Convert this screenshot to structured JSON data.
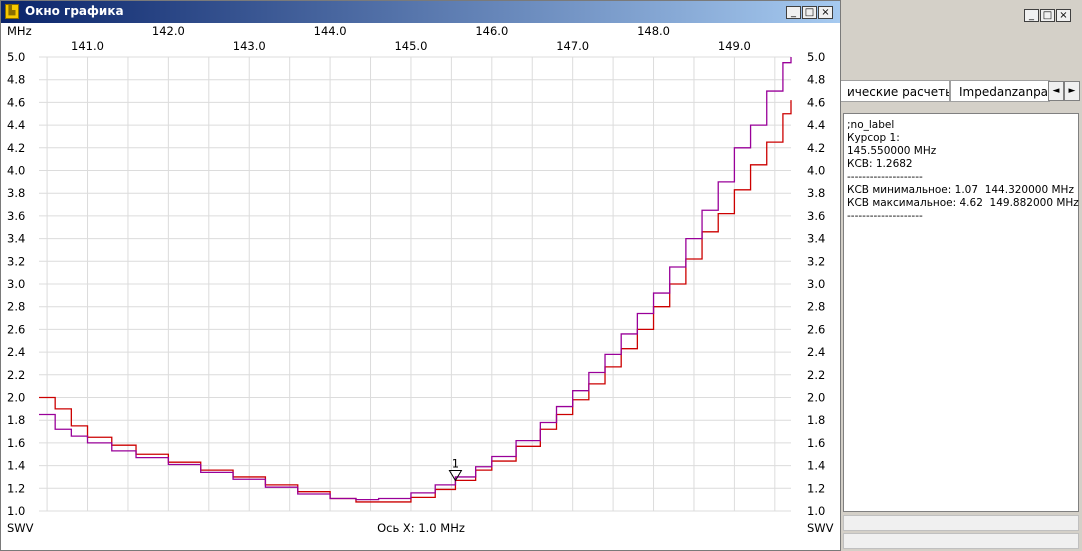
{
  "window": {
    "title": "Окно графика",
    "icon": "graph-window-icon",
    "buttons": [
      "_",
      "□",
      "×"
    ]
  },
  "background_window": {
    "buttons": [
      "_",
      "□",
      "×"
    ],
    "tabs": [
      "ические расчеты",
      "Impedanzanpas"
    ],
    "tab_arrows": [
      "◄",
      "►"
    ]
  },
  "info_panel": {
    "lines": [
      ";no_label",
      "",
      "Курсор 1:",
      "145.550000 MHz",
      "КСВ: 1.2682",
      "--------------------",
      "КСВ минимальное: 1.07  144.320000 MHz",
      "КСВ максимальное: 4.62  149.882000 MHz",
      "--------------------"
    ]
  },
  "chart_data": {
    "type": "line",
    "x_unit_label": "MHz",
    "x_axis_caption": "Ось X: 1.0 MHz",
    "y_label_left": "SWV",
    "y_label_right": "SWV",
    "xlim": [
      140.4,
      149.7
    ],
    "ylim": [
      1.0,
      5.0
    ],
    "x_ticks_top": [
      "142.0",
      "144.0",
      "146.0",
      "148.0"
    ],
    "x_ticks_bottom": [
      "141.0",
      "143.0",
      "145.0",
      "147.0",
      "149.0"
    ],
    "y_ticks": [
      "5.0",
      "4.8",
      "4.6",
      "4.4",
      "4.2",
      "4.0",
      "3.8",
      "3.6",
      "3.4",
      "3.2",
      "3.0",
      "2.8",
      "2.6",
      "2.4",
      "2.2",
      "2.0",
      "1.8",
      "1.6",
      "1.4",
      "1.2",
      "1.0"
    ],
    "grid": true,
    "cursor": {
      "label": "1",
      "x": 145.55,
      "y": 1.2682
    },
    "colors": {
      "series_red": "#cc0000",
      "series_purple": "#990099",
      "grid": "#dcdcdc"
    },
    "series": [
      {
        "color": "#cc0000",
        "x": [
          140.4,
          140.6,
          140.8,
          141.0,
          141.3,
          141.6,
          142.0,
          142.4,
          142.8,
          143.2,
          143.6,
          144.0,
          144.32,
          144.6,
          145.0,
          145.3,
          145.55,
          145.8,
          146.0,
          146.3,
          146.6,
          146.8,
          147.0,
          147.2,
          147.4,
          147.6,
          147.8,
          148.0,
          148.2,
          148.4,
          148.6,
          148.8,
          149.0,
          149.2,
          149.4,
          149.6,
          149.7
        ],
        "y": [
          2.0,
          1.9,
          1.75,
          1.65,
          1.58,
          1.5,
          1.43,
          1.36,
          1.3,
          1.23,
          1.17,
          1.11,
          1.08,
          1.08,
          1.12,
          1.19,
          1.27,
          1.36,
          1.44,
          1.57,
          1.72,
          1.85,
          1.98,
          2.12,
          2.27,
          2.43,
          2.6,
          2.8,
          3.0,
          3.22,
          3.46,
          3.62,
          3.83,
          4.05,
          4.25,
          4.5,
          4.62
        ]
      },
      {
        "color": "#990099",
        "x": [
          140.4,
          140.6,
          140.8,
          141.0,
          141.3,
          141.6,
          142.0,
          142.4,
          142.8,
          143.2,
          143.6,
          144.0,
          144.32,
          144.6,
          145.0,
          145.3,
          145.55,
          145.8,
          146.0,
          146.3,
          146.6,
          146.8,
          147.0,
          147.2,
          147.4,
          147.6,
          147.8,
          148.0,
          148.2,
          148.4,
          148.6,
          148.8,
          149.0,
          149.2,
          149.4,
          149.6,
          149.7
        ],
        "y": [
          1.85,
          1.72,
          1.66,
          1.6,
          1.53,
          1.47,
          1.41,
          1.34,
          1.28,
          1.21,
          1.15,
          1.11,
          1.1,
          1.11,
          1.16,
          1.23,
          1.3,
          1.39,
          1.48,
          1.62,
          1.78,
          1.92,
          2.06,
          2.22,
          2.38,
          2.56,
          2.74,
          2.92,
          3.15,
          3.4,
          3.65,
          3.9,
          4.2,
          4.4,
          4.7,
          4.95,
          5.0
        ]
      }
    ]
  }
}
